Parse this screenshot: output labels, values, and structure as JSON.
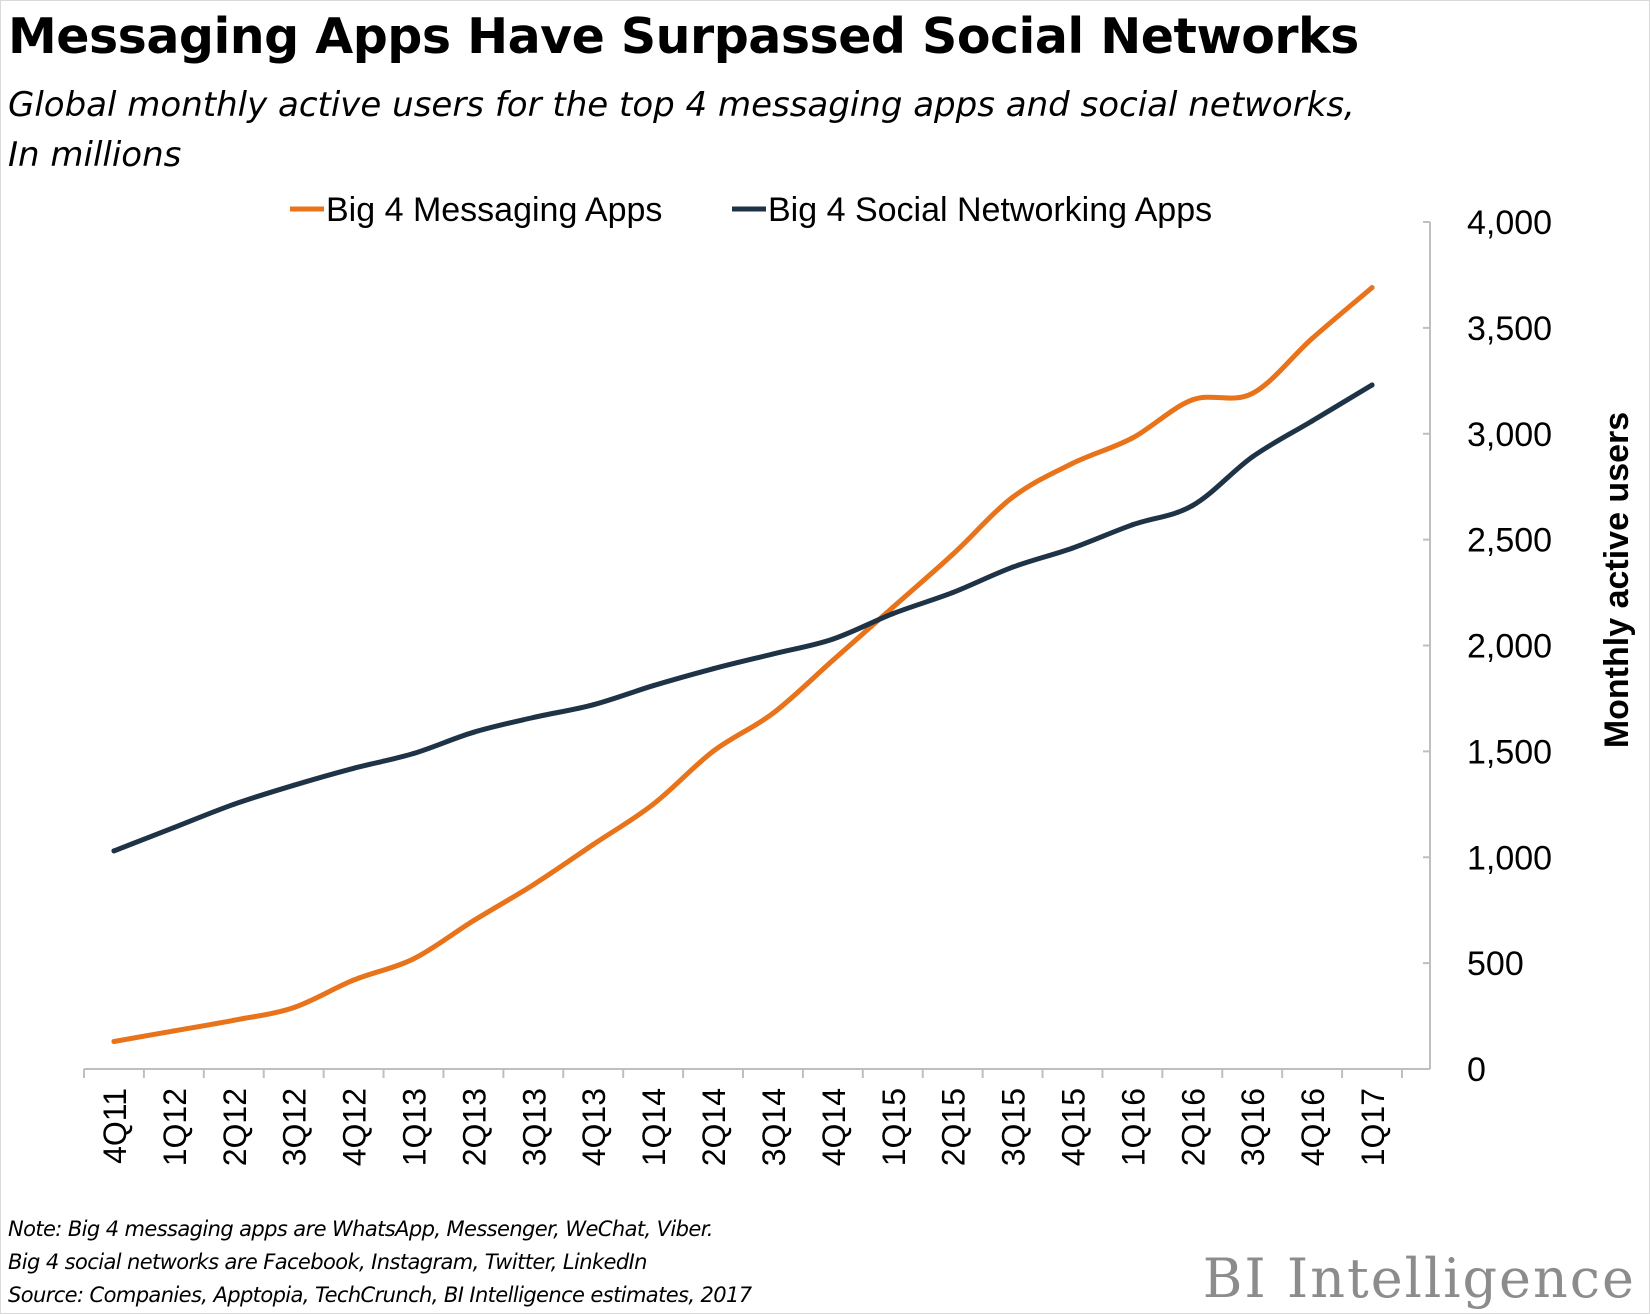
{
  "header": {
    "title": "Messaging Apps Have Surpassed Social Networks",
    "subtitle_line1": "Global monthly active users for the top 4 messaging apps and social networks,",
    "subtitle_line2": "In millions"
  },
  "chart_data": {
    "type": "line",
    "title": "Messaging Apps Have Surpassed Social Networks",
    "subtitle": "Global monthly active users for the top 4 messaging apps and social networks, In millions",
    "xlabel": "",
    "ylabel": "Monthly active users",
    "categories": [
      "4Q11",
      "1Q12",
      "2Q12",
      "3Q12",
      "4Q12",
      "1Q13",
      "2Q13",
      "3Q13",
      "4Q13",
      "1Q14",
      "2Q14",
      "3Q14",
      "4Q14",
      "1Q15",
      "2Q15",
      "3Q15",
      "4Q15",
      "1Q16",
      "2Q16",
      "3Q16",
      "4Q16",
      "1Q17"
    ],
    "ylim": [
      0,
      4000
    ],
    "yticks": [
      0,
      500,
      1000,
      1500,
      2000,
      2500,
      3000,
      3500,
      4000
    ],
    "ytick_labels": [
      "0",
      "500",
      "1,000",
      "1,500",
      "2,000",
      "2,500",
      "3,000",
      "3,500",
      "4,000"
    ],
    "y_axis_side": "right",
    "grid": false,
    "legend_position": "top",
    "series": [
      {
        "name": "Big 4 Messaging Apps",
        "color": "#E8731A",
        "values": [
          130,
          180,
          230,
          290,
          420,
          520,
          700,
          870,
          1060,
          1250,
          1500,
          1680,
          1930,
          2180,
          2430,
          2700,
          2860,
          2980,
          3160,
          3190,
          3450,
          3690
        ]
      },
      {
        "name": "Big 4 Social Networking Apps",
        "color": "#1F3347",
        "values": [
          1030,
          1140,
          1250,
          1340,
          1420,
          1490,
          1590,
          1660,
          1720,
          1810,
          1890,
          1960,
          2030,
          2150,
          2250,
          2370,
          2460,
          2570,
          2660,
          2890,
          3060,
          3230
        ]
      }
    ]
  },
  "footer": {
    "note_line1": "Note: Big 4 messaging apps are WhatsApp, Messenger, WeChat, Viber.",
    "note_line2": "Big 4 social networks are Facebook, Instagram, Twitter, LinkedIn",
    "source": "Source: Companies,  Apptopia, TechCrunch,  BI Intelligence estimates, 2017",
    "brand": "BI Intelligence"
  }
}
